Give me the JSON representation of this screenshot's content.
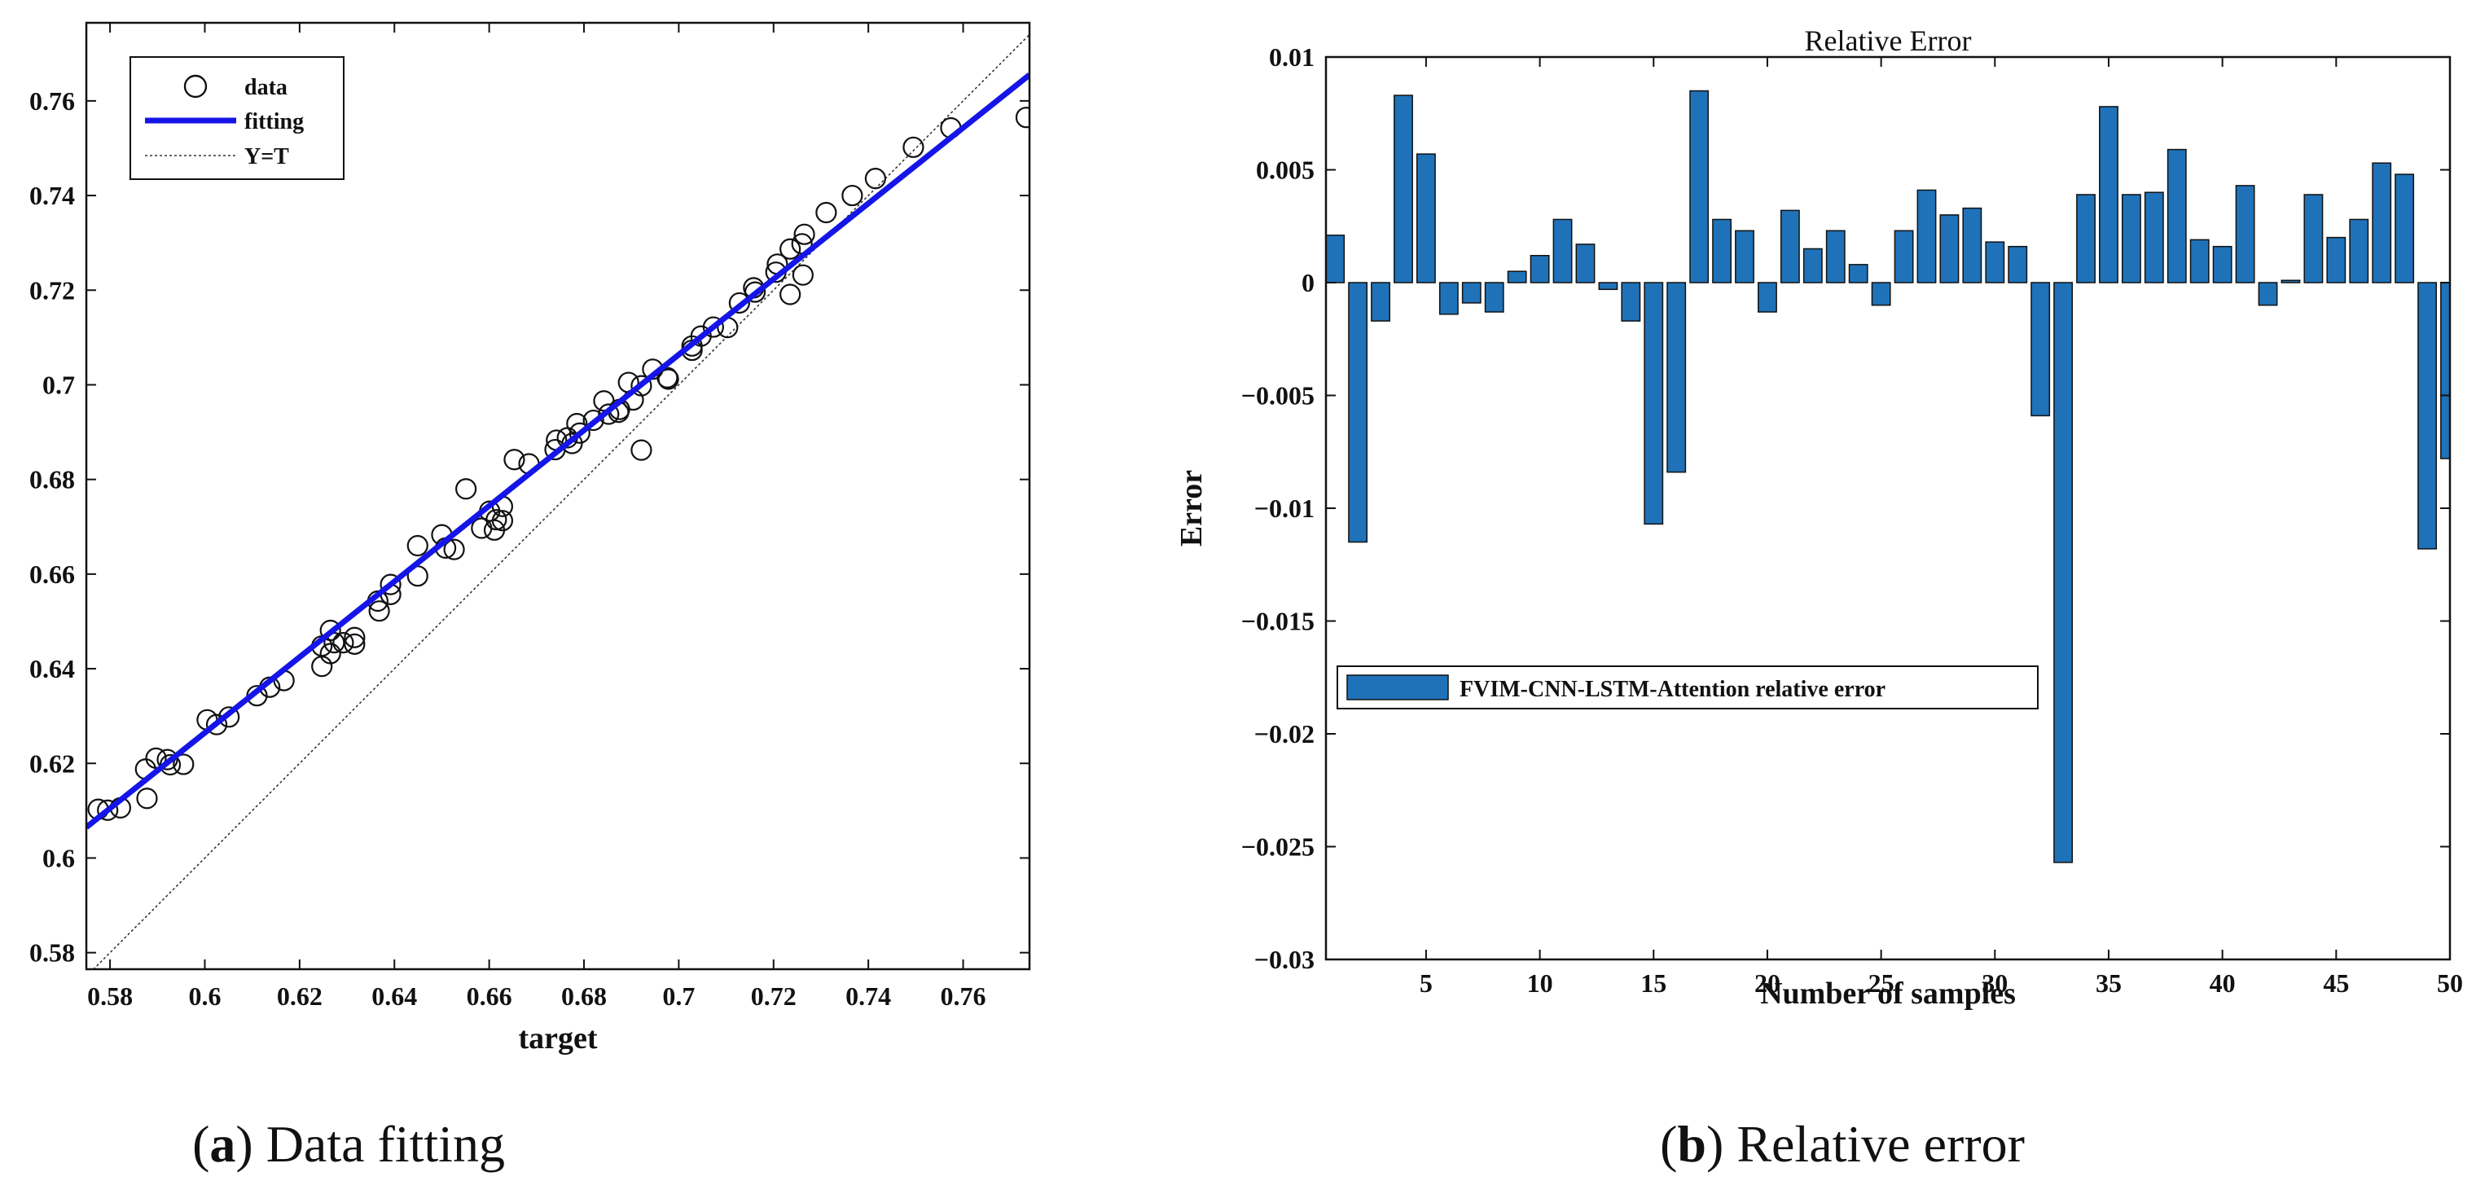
{
  "captions": {
    "a_letter": "a",
    "a_rest": " Data fitting",
    "b_letter": "b",
    "b_rest": " Relative error"
  },
  "chart_data": [
    {
      "type": "scatter",
      "title": "",
      "xlabel": "target",
      "ylabel": "",
      "xlim": [
        0.575,
        0.774
      ],
      "ylim": [
        0.5765,
        0.7765
      ],
      "xticks": [
        "0.58",
        "0.6",
        "0.62",
        "0.64",
        "0.66",
        "0.68",
        "0.7",
        "0.72",
        "0.74",
        "0.76"
      ],
      "xtick_values": [
        0.58,
        0.6,
        0.62,
        0.64,
        0.66,
        0.68,
        0.7,
        0.72,
        0.74,
        0.76
      ],
      "yticks": [
        "0.58",
        "0.6",
        "0.62",
        "0.64",
        "0.66",
        "0.68",
        "0.7",
        "0.72",
        "0.74",
        "0.76"
      ],
      "ytick_values": [
        0.58,
        0.6,
        0.62,
        0.64,
        0.66,
        0.68,
        0.7,
        0.72,
        0.74,
        0.76
      ],
      "legend": [
        {
          "label": "data",
          "style": "circle-marker"
        },
        {
          "label": "fitting",
          "style": "blue-line"
        },
        {
          "label": "Y=T",
          "style": "thin-dotted-line"
        }
      ],
      "legend_position": "top-left",
      "fit_line": {
        "x": [
          0.575,
          0.774
        ],
        "y": [
          0.6065,
          0.7655
        ],
        "color": "#1515e8"
      },
      "identity_line": {
        "x": [
          0.575,
          0.774
        ],
        "y": [
          0.575,
          0.774
        ]
      },
      "points": [
        [
          0.5775,
          0.6103
        ],
        [
          0.5795,
          0.6101
        ],
        [
          0.5822,
          0.6106
        ],
        [
          0.5875,
          0.6188
        ],
        [
          0.5878,
          0.6126
        ],
        [
          0.5897,
          0.6211
        ],
        [
          0.5921,
          0.6208
        ],
        [
          0.5927,
          0.6197
        ],
        [
          0.5955,
          0.6198
        ],
        [
          0.6005,
          0.6292
        ],
        [
          0.6025,
          0.6282
        ],
        [
          0.6051,
          0.6298
        ],
        [
          0.611,
          0.6343
        ],
        [
          0.6137,
          0.6361
        ],
        [
          0.6167,
          0.6375
        ],
        [
          0.6247,
          0.6405
        ],
        [
          0.6247,
          0.6448
        ],
        [
          0.6265,
          0.6481
        ],
        [
          0.6265,
          0.6432
        ],
        [
          0.6273,
          0.6455
        ],
        [
          0.6292,
          0.6455
        ],
        [
          0.6316,
          0.6466
        ],
        [
          0.6316,
          0.6452
        ],
        [
          0.6365,
          0.6543
        ],
        [
          0.6368,
          0.6522
        ],
        [
          0.6392,
          0.6578
        ],
        [
          0.6392,
          0.6557
        ],
        [
          0.6449,
          0.666
        ],
        [
          0.6449,
          0.6596
        ],
        [
          0.65,
          0.6683
        ],
        [
          0.6508,
          0.6655
        ],
        [
          0.6526,
          0.6652
        ],
        [
          0.6551,
          0.678
        ],
        [
          0.6584,
          0.6697
        ],
        [
          0.6601,
          0.6733
        ],
        [
          0.6611,
          0.6693
        ],
        [
          0.6615,
          0.6715
        ],
        [
          0.6628,
          0.6743
        ],
        [
          0.6628,
          0.6713
        ],
        [
          0.6653,
          0.6842
        ],
        [
          0.6684,
          0.6833
        ],
        [
          0.6739,
          0.6863
        ],
        [
          0.6742,
          0.6883
        ],
        [
          0.6765,
          0.6888
        ],
        [
          0.6775,
          0.6876
        ],
        [
          0.6785,
          0.6918
        ],
        [
          0.6791,
          0.6898
        ],
        [
          0.682,
          0.6925
        ],
        [
          0.6842,
          0.6966
        ],
        [
          0.6852,
          0.6938
        ],
        [
          0.6873,
          0.6942
        ],
        [
          0.6875,
          0.6948
        ],
        [
          0.6894,
          0.7005
        ],
        [
          0.6904,
          0.6968
        ],
        [
          0.6921,
          0.6862
        ],
        [
          0.6921,
          0.6998
        ],
        [
          0.6945,
          0.7033
        ],
        [
          0.6976,
          0.7015
        ],
        [
          0.6978,
          0.7012
        ],
        [
          0.7028,
          0.7073
        ],
        [
          0.7028,
          0.7082
        ],
        [
          0.7047,
          0.7103
        ],
        [
          0.7073,
          0.7122
        ],
        [
          0.7103,
          0.7121
        ],
        [
          0.7128,
          0.7173
        ],
        [
          0.7158,
          0.7205
        ],
        [
          0.7161,
          0.7196
        ],
        [
          0.7205,
          0.7238
        ],
        [
          0.7208,
          0.7255
        ],
        [
          0.7235,
          0.7287
        ],
        [
          0.7235,
          0.7191
        ],
        [
          0.726,
          0.7298
        ],
        [
          0.7262,
          0.7232
        ],
        [
          0.7265,
          0.7318
        ],
        [
          0.7311,
          0.7364
        ],
        [
          0.7366,
          0.74
        ],
        [
          0.7415,
          0.7436
        ],
        [
          0.7495,
          0.7502
        ],
        [
          0.7574,
          0.7543
        ],
        [
          0.7733,
          0.7565
        ]
      ]
    },
    {
      "type": "bar",
      "title": "Relative Error",
      "xlabel": "Number of samples",
      "ylabel": "Error",
      "xlim": [
        0.6,
        50
      ],
      "ylim": [
        -0.03,
        0.01
      ],
      "xticks": [
        "5",
        "10",
        "15",
        "20",
        "25",
        "30",
        "35",
        "40",
        "45",
        "50"
      ],
      "xtick_values": [
        5,
        10,
        15,
        20,
        25,
        30,
        35,
        40,
        45,
        50
      ],
      "yticks": [
        "0.01",
        "0.005",
        "0",
        "−0.005",
        "−0.01",
        "−0.015",
        "−0.02",
        "−0.025",
        "−0.03"
      ],
      "ytick_values": [
        0.01,
        0.005,
        0,
        -0.005,
        -0.01,
        -0.015,
        -0.02,
        -0.025,
        -0.03
      ],
      "bar_color": "#1f72b8",
      "legend": [
        {
          "label": "FVIM-CNN-LSTM-Attention relative error"
        }
      ],
      "legend_position": "middle-left",
      "series": [
        {
          "name": "FVIM-CNN-LSTM-Attention relative error",
          "x": [
            1,
            2,
            3,
            4,
            5,
            6,
            7,
            8,
            9,
            10,
            11,
            12,
            13,
            14,
            15,
            16,
            17,
            18,
            19,
            20,
            21,
            22,
            23,
            24,
            25,
            26,
            27,
            28,
            29,
            30,
            31,
            32,
            33,
            34,
            35,
            36,
            37,
            38,
            39,
            40,
            41,
            42,
            43,
            44,
            45,
            46,
            47,
            48,
            49,
            50
          ],
          "values": [
            0.0021,
            -0.0115,
            -0.0017,
            0.0083,
            0.0057,
            -0.0014,
            -0.0009,
            -0.0013,
            0.0005,
            0.0012,
            0.0028,
            0.0017,
            -0.0003,
            -0.0017,
            -0.0107,
            -0.0084,
            0.0085,
            0.0028,
            0.0023,
            -0.0013,
            0.0032,
            0.0015,
            0.0023,
            0.0008,
            -0.001,
            0.0023,
            0.0041,
            0.003,
            0.0033,
            0.0018,
            0.0016,
            -0.0059,
            -0.0257,
            0.0039,
            0.0078,
            0.0039,
            0.004,
            0.0059,
            0.0019,
            0.0016,
            0.0043,
            -0.001,
            0.0001,
            0.0039,
            0.002,
            0.0028,
            0.0053,
            0.0048,
            -0.0118,
            -0.0078
          ]
        }
      ]
    }
  ]
}
